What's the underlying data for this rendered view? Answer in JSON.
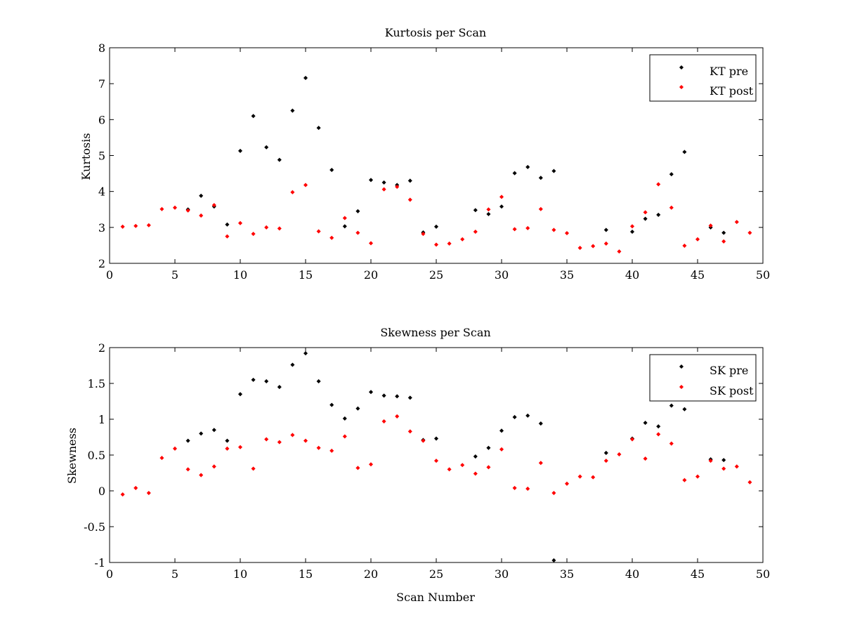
{
  "colors": {
    "pre": "#000000",
    "post": "#ff0000",
    "background": "#ffffff"
  },
  "chart_data": [
    {
      "type": "scatter",
      "title": "Kurtosis per Scan",
      "xlabel": "",
      "ylabel": "Kurtosis",
      "xlim": [
        0,
        50
      ],
      "ylim": [
        2,
        8
      ],
      "xticks": [
        0,
        5,
        10,
        15,
        20,
        25,
        30,
        35,
        40,
        45,
        50
      ],
      "yticks": [
        2,
        3,
        4,
        5,
        6,
        7,
        8
      ],
      "xtick_labels": [
        "0",
        "5",
        "10",
        "15",
        "20",
        "25",
        "30",
        "35",
        "40",
        "45",
        "50"
      ],
      "ytick_labels": [
        "2",
        "3",
        "4",
        "5",
        "6",
        "7",
        "8"
      ],
      "grid": false,
      "legend_position": "top-right",
      "series": [
        {
          "name": "KT pre",
          "color": "#000000",
          "x": [
            6,
            7,
            8,
            9,
            10,
            11,
            12,
            13,
            14,
            15,
            16,
            17,
            18,
            19,
            20,
            21,
            22,
            23,
            24,
            25,
            28,
            29,
            30,
            31,
            32,
            33,
            34,
            38,
            40,
            41,
            42,
            43,
            44,
            46,
            47
          ],
          "y": [
            3.5,
            3.88,
            3.58,
            3.08,
            5.13,
            6.1,
            5.23,
            4.88,
            6.25,
            7.16,
            5.77,
            4.6,
            3.03,
            3.45,
            4.32,
            4.25,
            4.18,
            4.3,
            2.86,
            3.02,
            3.48,
            3.37,
            3.58,
            4.51,
            4.68,
            4.38,
            4.57,
            2.93,
            2.88,
            3.24,
            3.35,
            4.48,
            5.1,
            3.0,
            2.85
          ]
        },
        {
          "name": "KT post",
          "color": "#ff0000",
          "x": [
            1,
            2,
            3,
            4,
            5,
            6,
            7,
            8,
            9,
            10,
            11,
            12,
            13,
            14,
            15,
            16,
            17,
            18,
            19,
            20,
            21,
            22,
            23,
            24,
            25,
            26,
            27,
            28,
            29,
            30,
            31,
            32,
            33,
            34,
            35,
            36,
            37,
            38,
            39,
            40,
            41,
            42,
            43,
            44,
            45,
            46,
            47,
            48,
            49
          ],
          "y": [
            3.02,
            3.04,
            3.06,
            3.51,
            3.55,
            3.47,
            3.33,
            3.62,
            2.75,
            3.12,
            2.82,
            3.0,
            2.97,
            3.98,
            4.18,
            2.89,
            2.71,
            3.26,
            2.85,
            2.56,
            4.06,
            4.13,
            3.77,
            2.82,
            2.52,
            2.55,
            2.67,
            2.88,
            3.5,
            3.85,
            2.95,
            2.98,
            3.51,
            2.93,
            2.84,
            2.43,
            2.48,
            2.55,
            2.33,
            3.03,
            3.42,
            4.2,
            3.55,
            2.49,
            2.67,
            3.05,
            2.61,
            3.15,
            2.85
          ]
        }
      ]
    },
    {
      "type": "scatter",
      "title": "Skewness per Scan",
      "xlabel": "Scan Number",
      "ylabel": "Skewness",
      "xlim": [
        0,
        50
      ],
      "ylim": [
        -1,
        2
      ],
      "xticks": [
        0,
        5,
        10,
        15,
        20,
        25,
        30,
        35,
        40,
        45,
        50
      ],
      "yticks": [
        -1,
        -0.5,
        0,
        0.5,
        1,
        1.5,
        2
      ],
      "xtick_labels": [
        "0",
        "5",
        "10",
        "15",
        "20",
        "25",
        "30",
        "35",
        "40",
        "45",
        "50"
      ],
      "ytick_labels": [
        "-1",
        "-0.5",
        "0",
        "0.5",
        "1",
        "1.5",
        "2"
      ],
      "grid": false,
      "legend_position": "top-right",
      "series": [
        {
          "name": "SK pre",
          "color": "#000000",
          "x": [
            6,
            7,
            8,
            9,
            10,
            11,
            12,
            13,
            14,
            15,
            16,
            17,
            18,
            19,
            20,
            21,
            22,
            23,
            24,
            25,
            28,
            29,
            30,
            31,
            32,
            33,
            34,
            38,
            40,
            41,
            42,
            43,
            44,
            46,
            47
          ],
          "y": [
            0.7,
            0.8,
            0.85,
            0.7,
            1.35,
            1.55,
            1.53,
            1.45,
            1.76,
            1.92,
            1.53,
            1.2,
            1.01,
            1.15,
            1.38,
            1.33,
            1.32,
            1.3,
            0.71,
            0.73,
            0.48,
            0.6,
            0.84,
            1.03,
            1.05,
            0.94,
            -0.97,
            0.53,
            0.73,
            0.95,
            0.9,
            1.19,
            1.14,
            0.44,
            0.43
          ]
        },
        {
          "name": "SK post",
          "color": "#ff0000",
          "x": [
            1,
            2,
            3,
            4,
            5,
            6,
            7,
            8,
            9,
            10,
            11,
            12,
            13,
            14,
            15,
            16,
            17,
            18,
            19,
            20,
            21,
            22,
            23,
            24,
            25,
            26,
            27,
            28,
            29,
            30,
            31,
            32,
            33,
            34,
            35,
            36,
            37,
            38,
            39,
            40,
            41,
            42,
            43,
            44,
            45,
            46,
            47,
            48,
            49
          ],
          "y": [
            -0.05,
            0.04,
            -0.03,
            0.46,
            0.59,
            0.3,
            0.22,
            0.34,
            0.59,
            0.61,
            0.31,
            0.72,
            0.68,
            0.78,
            0.7,
            0.6,
            0.56,
            0.76,
            0.32,
            0.37,
            0.97,
            1.04,
            0.83,
            0.7,
            0.42,
            0.3,
            0.36,
            0.24,
            0.33,
            0.58,
            0.04,
            0.03,
            0.39,
            -0.03,
            0.1,
            0.2,
            0.19,
            0.42,
            0.51,
            0.72,
            0.45,
            0.79,
            0.66,
            0.15,
            0.2,
            0.42,
            0.31,
            0.34,
            0.12
          ]
        }
      ]
    }
  ]
}
